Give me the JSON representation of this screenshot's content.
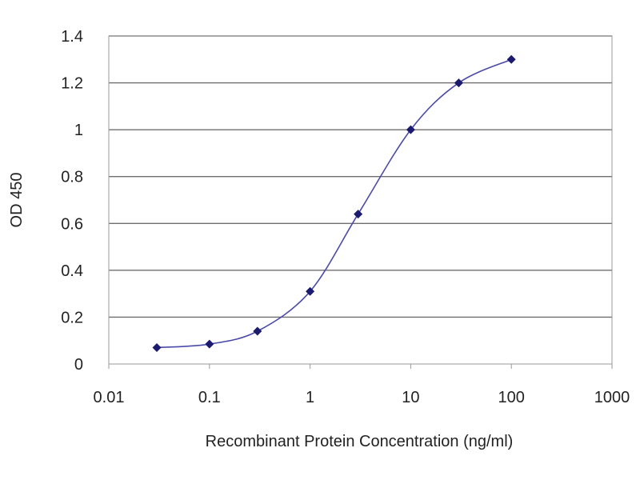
{
  "chart_data": {
    "type": "line",
    "title": "",
    "xlabel": "Recombinant Protein Concentration (ng/ml)",
    "ylabel": "OD 450",
    "x_scale": "log",
    "xlim": [
      0.01,
      1000
    ],
    "ylim": [
      0,
      1.4
    ],
    "x_ticks": [
      0.01,
      0.1,
      1,
      10,
      100,
      1000
    ],
    "x_tick_labels": [
      "0.01",
      "0.1",
      "1",
      "10",
      "100",
      "1000"
    ],
    "y_ticks": [
      0,
      0.2,
      0.4,
      0.6,
      0.8,
      1,
      1.2,
      1.4
    ],
    "y_tick_labels": [
      "0",
      "0.2",
      "0.4",
      "0.6",
      "0.8",
      "1",
      "1.2",
      "1.4"
    ],
    "grid": "horizontal",
    "legend": "none",
    "series": [
      {
        "x": [
          0.03,
          0.1,
          0.3,
          1,
          3,
          10,
          30,
          100
        ],
        "y": [
          0.07,
          0.085,
          0.14,
          0.31,
          0.64,
          1.0,
          1.2,
          1.3
        ],
        "color": "#2b2b8f",
        "marker": "diamond",
        "line": "smooth"
      }
    ],
    "colors": {
      "line": "#4a4aa8",
      "marker": "#1a1a6e",
      "grid": "#6e6e6e",
      "frame": "#9a9a9a"
    }
  }
}
